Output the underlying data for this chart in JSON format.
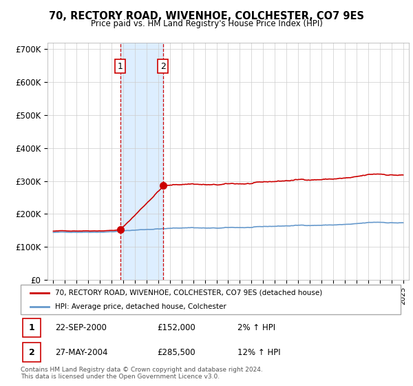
{
  "title": "70, RECTORY ROAD, WIVENHOE, COLCHESTER, CO7 9ES",
  "subtitle": "Price paid vs. HM Land Registry's House Price Index (HPI)",
  "ylim": [
    0,
    720000
  ],
  "yticks": [
    0,
    100000,
    200000,
    300000,
    400000,
    500000,
    600000,
    700000
  ],
  "ytick_labels": [
    "£0",
    "£100K",
    "£200K",
    "£300K",
    "£400K",
    "£500K",
    "£600K",
    "£700K"
  ],
  "sale1_date": 2000.73,
  "sale1_price": 152000,
  "sale1_label": "1",
  "sale2_date": 2004.4,
  "sale2_price": 285500,
  "sale2_label": "2",
  "property_line_color": "#cc0000",
  "hpi_line_color": "#6699cc",
  "highlight_color": "#ddeeff",
  "vertical_line_color": "#cc0000",
  "legend_property": "70, RECTORY ROAD, WIVENHOE, COLCHESTER, CO7 9ES (detached house)",
  "legend_hpi": "HPI: Average price, detached house, Colchester",
  "table_row1": [
    "1",
    "22-SEP-2000",
    "£152,000",
    "2% ↑ HPI"
  ],
  "table_row2": [
    "2",
    "27-MAY-2004",
    "£285,500",
    "12% ↑ HPI"
  ],
  "footer": "Contains HM Land Registry data © Crown copyright and database right 2024.\nThis data is licensed under the Open Government Licence v3.0.",
  "background_color": "#ffffff",
  "grid_color": "#cccccc",
  "start_year": 1995,
  "end_year": 2025,
  "n_points": 366
}
